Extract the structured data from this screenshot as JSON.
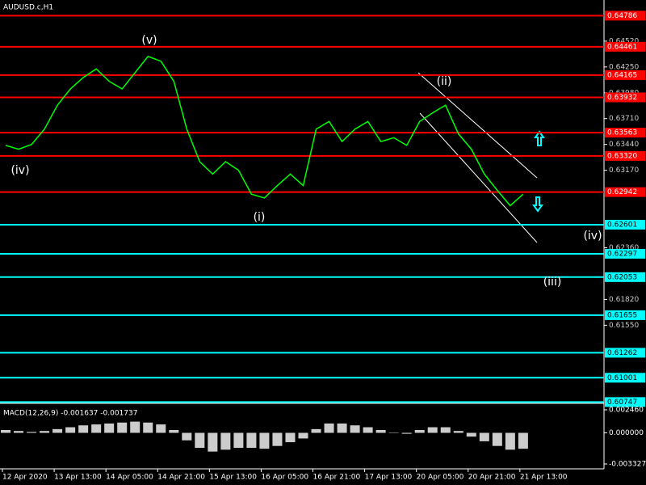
{
  "symbol": "AUDUSD.c,H1",
  "chart_data": [
    {
      "type": "line",
      "x": [
        1,
        5,
        9,
        13,
        17,
        21,
        25,
        29,
        33,
        37,
        41,
        45,
        49,
        53,
        57,
        61,
        65,
        69,
        73,
        77,
        81,
        85,
        89,
        93,
        97,
        101,
        105,
        109,
        113,
        117,
        121,
        125,
        129,
        133,
        137,
        141,
        145,
        149,
        153,
        157,
        161
      ],
      "series": [
        {
          "color": "#00ff00",
          "values": [
            0.6343,
            0.6339,
            0.6344,
            0.636,
            0.6385,
            0.6402,
            0.6414,
            0.6423,
            0.641,
            0.6402,
            0.6419,
            0.6436,
            0.6431,
            0.641,
            0.636,
            0.6326,
            0.6313,
            0.6326,
            0.6317,
            0.6292,
            0.6288,
            0.6301,
            0.6313,
            0.6301,
            0.636,
            0.6368,
            0.6347,
            0.636,
            0.6368,
            0.6347,
            0.6351,
            0.6343,
            0.6368,
            0.6377,
            0.6385,
            0.6355,
            0.6339,
            0.6313,
            0.6296,
            0.628,
            0.6292
          ]
        }
      ],
      "xlim": [
        0,
        186.75
      ],
      "xticks": [
        {
          "value": 0,
          "label": "12 Apr 2020"
        },
        {
          "value": 16,
          "label": "13 Apr 13:00"
        },
        {
          "value": 32,
          "label": "14 Apr 05:00"
        },
        {
          "value": 48,
          "label": "14 Apr 21:00"
        },
        {
          "value": 64,
          "label": "15 Apr 13:00"
        },
        {
          "value": 80,
          "label": "16 Apr 05:00"
        },
        {
          "value": 96,
          "label": "16 Apr 21:00"
        },
        {
          "value": 112,
          "label": "17 Apr 13:00"
        },
        {
          "value": 128,
          "label": "20 Apr 05:00"
        },
        {
          "value": 144,
          "label": "20 Apr 21:00"
        },
        {
          "value": 160,
          "label": "21 Apr 13:00"
        }
      ],
      "ylim": [
        0.6075,
        0.6495
      ],
      "yticks": [
        {
          "value": 0.6452,
          "label": "0.64520"
        },
        {
          "value": 0.6425,
          "label": "0.64250"
        },
        {
          "value": 0.6398,
          "label": "0.63980"
        },
        {
          "value": 0.6371,
          "label": "0.63710"
        },
        {
          "value": 0.6344,
          "label": "0.63440"
        },
        {
          "value": 0.6317,
          "label": "0.63170"
        },
        {
          "value": 0.6236,
          "label": "0.62360"
        },
        {
          "value": 0.6182,
          "label": "0.61820"
        },
        {
          "value": 0.6155,
          "label": "0.61550"
        }
      ],
      "levels": [
        {
          "value": 0.64786,
          "color": "#ff0000"
        },
        {
          "value": 0.64461,
          "color": "#ff0000"
        },
        {
          "value": 0.64165,
          "color": "#ff0000"
        },
        {
          "value": 0.63932,
          "color": "#ff0000"
        },
        {
          "value": 0.63563,
          "color": "#ff0000"
        },
        {
          "value": 0.6332,
          "label": "0.63320",
          "color": "#ff0000"
        },
        {
          "value": 0.62942,
          "color": "#ff0000"
        },
        {
          "value": 0.62601,
          "color": "#00ffff"
        },
        {
          "value": 0.62297,
          "color": "#00ffff"
        },
        {
          "value": 0.62053,
          "color": "#00ffff"
        },
        {
          "value": 0.61655,
          "color": "#00ffff"
        },
        {
          "value": 0.61262,
          "color": "#00ffff"
        },
        {
          "value": 0.61001,
          "color": "#00ffff"
        },
        {
          "value": 0.60747,
          "color": "#00ffff"
        }
      ],
      "annotations": [
        "(v)",
        "(ii)",
        "(iv)",
        "(i)",
        "(iv)",
        "(iii)"
      ]
    },
    {
      "type": "bar",
      "title": "MACD(12,26,9) -0.001637 -0.001737",
      "x": [
        1,
        5,
        9,
        13,
        17,
        21,
        25,
        29,
        33,
        37,
        41,
        45,
        49,
        53,
        57,
        61,
        65,
        69,
        73,
        77,
        81,
        85,
        89,
        93,
        97,
        101,
        105,
        109,
        113,
        117,
        121,
        125,
        129,
        133,
        137,
        141,
        145,
        149,
        153,
        157,
        161
      ],
      "values": [
        0.0003,
        0.0002,
        0.0001,
        0.0002,
        0.0004,
        0.0006,
        0.0008,
        0.0009,
        0.001,
        0.0011,
        0.0012,
        0.0011,
        0.0009,
        0.0003,
        -0.0008,
        -0.0016,
        -0.002,
        -0.0018,
        -0.0016,
        -0.0016,
        -0.0017,
        -0.0014,
        -0.001,
        -0.0006,
        0.0004,
        0.001,
        0.001,
        0.0008,
        0.0006,
        0.0003,
        0,
        -0.0001,
        0.0003,
        0.0006,
        0.0006,
        0.0002,
        -0.0004,
        -0.0009,
        -0.0014,
        -0.0018,
        -0.0017
      ],
      "color": "#ffffff",
      "ylim": [
        -0.003327,
        0.00246
      ],
      "yticks": [
        {
          "value": 0.00246,
          "label": "0.002460"
        },
        {
          "value": 0,
          "label": "0.000000"
        },
        {
          "value": -0.003327,
          "label": "-0.003327"
        }
      ]
    }
  ]
}
